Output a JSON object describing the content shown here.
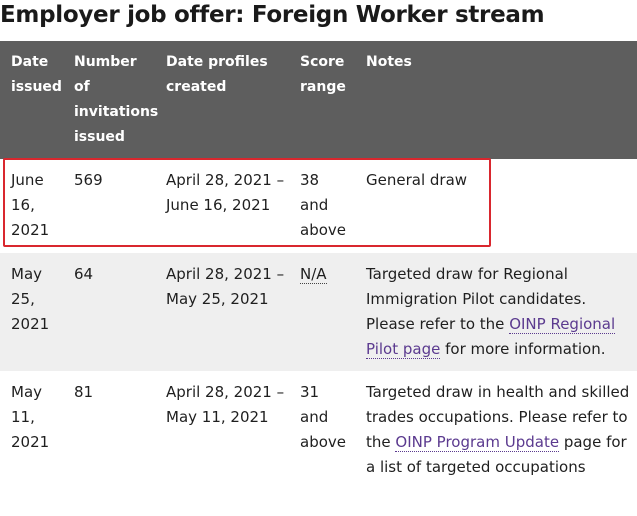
{
  "page": {
    "title": "Employer job offer: Foreign Worker stream"
  },
  "table": {
    "headers": {
      "date_issued": "Date issued",
      "num_invitations": "Number of invitations issued",
      "profiles_created": "Date profiles created",
      "score_range": "Score range",
      "notes": "Notes"
    },
    "rows": [
      {
        "date": "June 16, 2021",
        "invitations": "569",
        "profiles": "April 28, 2021 – June 16, 2021",
        "score": "38 and above",
        "notes_text": "General draw",
        "highlighted": true
      },
      {
        "date": "May 25, 2021",
        "invitations": "64",
        "profiles": "April 28, 2021 – May 25, 2021",
        "score": "N/A",
        "notes_text": "Targeted draw for Regional Immigration Pilot candidates. Please refer to the",
        "notes_link": "OINP Regional Pilot page",
        "notes_after": "for more information."
      },
      {
        "date": "May 11, 2021",
        "invitations": "81",
        "profiles": "April 28, 2021 – May 11, 2021",
        "score": "31 and above",
        "notes_text": "Targeted draw in health and skilled trades occupations. Please refer to the",
        "notes_link": "OINP Program Update",
        "notes_after": "page for a list of targeted occupations"
      }
    ]
  },
  "colors": {
    "header_bg": "#5e5e5e",
    "alt_row_bg": "#efefef",
    "link": "#5b3a8f",
    "highlight_border": "#d9272e"
  }
}
